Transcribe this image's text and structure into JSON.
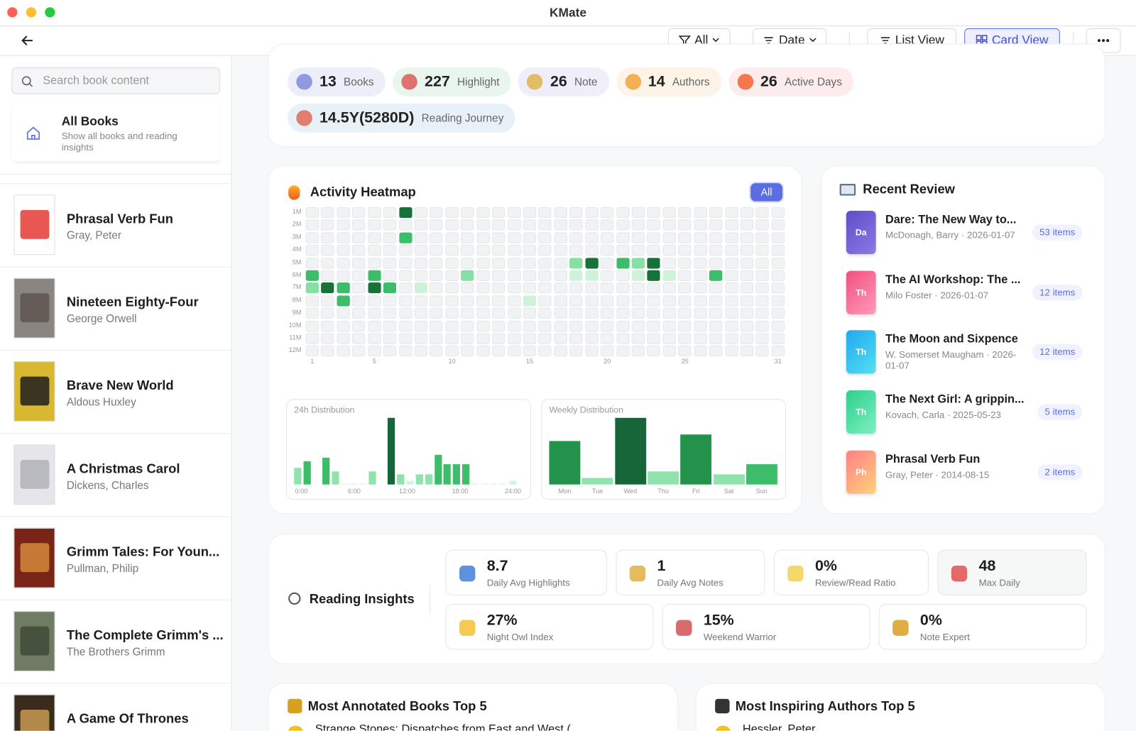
{
  "window": {
    "title": "KMate"
  },
  "toolbar": {
    "filter": "All",
    "sort": "Date",
    "list_view": "List View",
    "card_view": "Card View"
  },
  "sidebar": {
    "search_placeholder": "Search book content",
    "all_books": {
      "title": "All Books",
      "subtitle": "Show all books and reading insights"
    },
    "books": [
      {
        "title": "Phrasal Verb Fun",
        "author": "Gray, Peter"
      },
      {
        "title": "Nineteen Eighty-Four",
        "author": "George Orwell"
      },
      {
        "title": "Brave New World",
        "author": "Aldous Huxley"
      },
      {
        "title": "A Christmas Carol",
        "author": "Dickens, Charles"
      },
      {
        "title": "Grimm Tales: For Youn...",
        "author": "Pullman, Philip"
      },
      {
        "title": "The Complete Grimm's ...",
        "author": "The Brothers Grimm"
      },
      {
        "title": "A Game Of Thrones"
      }
    ]
  },
  "stats": [
    {
      "value": 13,
      "label": "Books"
    },
    {
      "value": 227,
      "label": "Highlight"
    },
    {
      "value": 26,
      "label": "Note"
    },
    {
      "value": 14,
      "label": "Authors"
    },
    {
      "value": 26,
      "label": "Active Days"
    },
    {
      "value": "14.5Y(5280D)",
      "label": "Reading Journey"
    }
  ],
  "heatmap": {
    "title": "Activity Heatmap",
    "filter": "All",
    "months": [
      "1M",
      "2M",
      "3M",
      "4M",
      "5M",
      "6M",
      "7M",
      "8M",
      "9M",
      "10M",
      "11M",
      "12M"
    ],
    "day_ticks": [
      1,
      5,
      10,
      15,
      20,
      25,
      31
    ],
    "levels": [
      [
        0,
        0,
        0,
        0,
        0,
        0,
        4,
        0,
        0,
        0,
        0,
        0,
        0,
        0,
        0,
        0,
        0,
        0,
        0,
        0,
        0,
        0,
        0,
        0,
        0,
        0,
        0,
        0,
        0,
        0,
        0
      ],
      [
        0,
        0,
        0,
        0,
        0,
        0,
        0,
        0,
        0,
        0,
        0,
        0,
        0,
        0,
        0,
        0,
        0,
        0,
        0,
        0,
        0,
        0,
        0,
        0,
        0,
        0,
        0,
        0,
        0,
        0,
        0
      ],
      [
        0,
        0,
        0,
        0,
        0,
        0,
        3,
        0,
        0,
        0,
        0,
        0,
        0,
        0,
        0,
        0,
        0,
        0,
        0,
        0,
        0,
        0,
        0,
        0,
        0,
        0,
        0,
        0,
        0,
        0,
        0
      ],
      [
        0,
        0,
        0,
        0,
        0,
        0,
        0,
        0,
        0,
        0,
        0,
        0,
        0,
        0,
        0,
        0,
        0,
        0,
        0,
        0,
        0,
        0,
        0,
        0,
        0,
        0,
        0,
        0,
        0,
        0,
        0
      ],
      [
        0,
        0,
        0,
        0,
        0,
        0,
        0,
        0,
        0,
        0,
        0,
        0,
        0,
        0,
        0,
        0,
        0,
        2,
        4,
        0,
        3,
        2,
        4,
        0,
        0,
        0,
        0,
        0,
        0,
        0,
        0
      ],
      [
        3,
        0,
        0,
        0,
        3,
        0,
        0,
        0,
        0,
        0,
        2,
        0,
        0,
        0,
        0,
        0,
        0,
        1,
        1,
        0,
        0,
        1,
        4,
        1,
        0,
        0,
        3,
        0,
        0,
        0,
        0
      ],
      [
        2,
        4,
        3,
        0,
        4,
        3,
        0,
        1,
        0,
        0,
        0,
        0,
        0,
        0,
        0,
        0,
        0,
        0,
        0,
        0,
        0,
        0,
        0,
        0,
        0,
        0,
        0,
        0,
        0,
        0,
        0
      ],
      [
        0,
        0,
        3,
        0,
        0,
        0,
        0,
        0,
        0,
        0,
        0,
        0,
        0,
        0,
        1,
        0,
        0,
        0,
        0,
        0,
        0,
        0,
        0,
        0,
        0,
        0,
        0,
        0,
        0,
        0,
        0
      ],
      [
        0,
        0,
        0,
        0,
        0,
        0,
        0,
        0,
        0,
        0,
        0,
        0,
        0,
        0,
        0,
        0,
        0,
        0,
        0,
        0,
        0,
        0,
        0,
        0,
        0,
        0,
        0,
        0,
        0,
        0,
        0
      ],
      [
        0,
        0,
        0,
        0,
        0,
        0,
        0,
        0,
        0,
        0,
        0,
        0,
        0,
        0,
        0,
        0,
        0,
        0,
        0,
        0,
        0,
        0,
        0,
        0,
        0,
        0,
        0,
        0,
        0,
        0,
        0
      ],
      [
        0,
        0,
        0,
        0,
        0,
        0,
        0,
        0,
        0,
        0,
        0,
        0,
        0,
        0,
        0,
        0,
        0,
        0,
        0,
        0,
        0,
        0,
        0,
        0,
        0,
        0,
        0,
        0,
        0,
        0,
        0
      ],
      [
        0,
        0,
        0,
        0,
        0,
        0,
        0,
        0,
        0,
        0,
        0,
        0,
        0,
        0,
        0,
        0,
        0,
        0,
        0,
        0,
        0,
        0,
        0,
        0,
        0,
        0,
        0,
        0,
        0,
        0,
        0
      ]
    ]
  },
  "distribution_24h": {
    "title": "24h Distribution",
    "ticks": [
      "0:00",
      "6:00",
      "12:00",
      "18:00",
      "24:00"
    ],
    "values": [
      5,
      7,
      0,
      8,
      4,
      0.2,
      0.2,
      0.2,
      4,
      0,
      20,
      3,
      1,
      3,
      3,
      9,
      6,
      6,
      6,
      0.2,
      0.2,
      0.2,
      0.2,
      1
    ]
  },
  "distribution_weekly": {
    "title": "Weekly Distribution",
    "categories": [
      "Mon",
      "Tue",
      "Wed",
      "Thu",
      "Fri",
      "Sat",
      "Sun"
    ],
    "values": [
      13,
      2,
      20,
      4,
      15,
      3,
      6
    ]
  },
  "recent_review": {
    "title": "Recent Review",
    "items": [
      {
        "badge": "Da",
        "title": "Dare: The New Way to...",
        "meta": "McDonagh, Barry · 2026-01-07",
        "count": "53 items"
      },
      {
        "badge": "Th",
        "title": "The AI Workshop: The ...",
        "meta": "Milo Foster · 2026-01-07",
        "count": "12 items"
      },
      {
        "badge": "Th",
        "title": "The Moon and Sixpence",
        "meta": "W. Somerset Maugham · 2026-01-07",
        "count": "12 items"
      },
      {
        "badge": "Th",
        "title": "The Next Girl: A grippin...",
        "meta": "Kovach, Carla · 2025-05-23",
        "count": "5 items"
      },
      {
        "badge": "Ph",
        "title": "Phrasal Verb Fun",
        "meta": "Gray, Peter · 2014-08-15",
        "count": "2 items"
      }
    ]
  },
  "insights": {
    "title": "Reading Insights",
    "cards": [
      {
        "value": "8.7",
        "label": "Daily Avg Highlights"
      },
      {
        "value": "1",
        "label": "Daily Avg Notes"
      },
      {
        "value": "0%",
        "label": "Review/Read Ratio"
      },
      {
        "value": "48",
        "label": "Max Daily"
      },
      {
        "value": "27%",
        "label": "Night Owl Index"
      },
      {
        "value": "15%",
        "label": "Weekend Warrior"
      },
      {
        "value": "0%",
        "label": "Note Expert"
      }
    ]
  },
  "top_books": {
    "title": "Most Annotated Books Top 5",
    "items": [
      "Strange Stones: Dispatches from East and West ("
    ]
  },
  "top_authors": {
    "title": "Most Inspiring Authors Top 5",
    "items": [
      "Hessler, Peter"
    ]
  }
}
